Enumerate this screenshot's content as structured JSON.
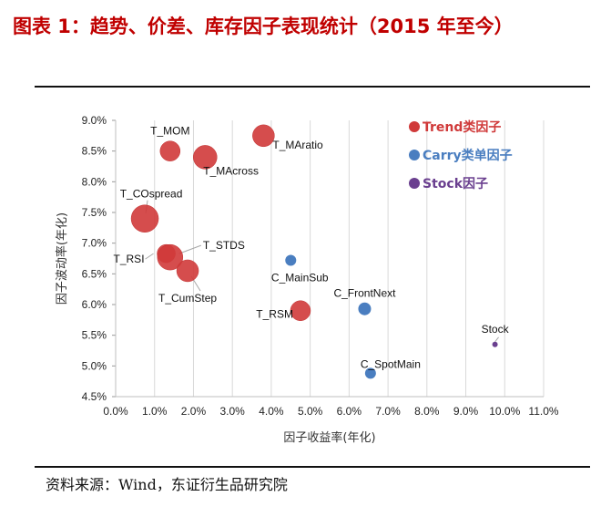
{
  "title": "图表 1：趋势、价差、库存因子表现统计（2015 年至今）",
  "source": "资料来源：Wind，东证衍生品研究院",
  "colors": {
    "trend": "#d03a3a",
    "carry": "#4a7ec0",
    "stock": "#6a3f8f",
    "grid": "#d9d9d9",
    "title": "#c00000"
  },
  "chart_data": {
    "type": "scatter",
    "title": "",
    "xlabel": "因子收益率(年化)",
    "ylabel": "因子波动率(年化)",
    "xlim": [
      0.0,
      11.0
    ],
    "ylim": [
      4.5,
      9.0
    ],
    "x_ticks": [
      "0.0%",
      "1.0%",
      "2.0%",
      "3.0%",
      "4.0%",
      "5.0%",
      "6.0%",
      "7.0%",
      "8.0%",
      "9.0%",
      "10.0%",
      "11.0%"
    ],
    "y_ticks": [
      "4.5%",
      "5.0%",
      "5.5%",
      "6.0%",
      "6.5%",
      "7.0%",
      "7.5%",
      "8.0%",
      "8.5%",
      "9.0%"
    ],
    "grid": "vertical",
    "legend_position": "top-right",
    "legend": [
      {
        "label": "Trend类因子",
        "group": "trend"
      },
      {
        "label": "Carry类单因子",
        "group": "carry"
      },
      {
        "label": "Stock因子",
        "group": "stock"
      }
    ],
    "points": [
      {
        "name": "T_MOM",
        "x": 1.4,
        "y": 8.5,
        "group": "trend",
        "size": 11
      },
      {
        "name": "T_MAratio",
        "x": 3.8,
        "y": 8.75,
        "group": "trend",
        "size": 12
      },
      {
        "name": "T_MAcross",
        "x": 2.3,
        "y": 8.4,
        "group": "trend",
        "size": 13
      },
      {
        "name": "T_COspread",
        "x": 0.75,
        "y": 7.4,
        "group": "trend",
        "size": 15
      },
      {
        "name": "T_RSI",
        "x": 1.3,
        "y": 6.83,
        "group": "trend",
        "size": 10
      },
      {
        "name": "T_STDS",
        "x": 1.4,
        "y": 6.77,
        "group": "trend",
        "size": 14
      },
      {
        "name": "T_CumStep",
        "x": 1.85,
        "y": 6.55,
        "group": "trend",
        "size": 12
      },
      {
        "name": "T_RSM",
        "x": 4.75,
        "y": 5.9,
        "group": "trend",
        "size": 11
      },
      {
        "name": "C_MainSub",
        "x": 4.5,
        "y": 6.72,
        "group": "carry",
        "size": 6
      },
      {
        "name": "C_FrontNext",
        "x": 6.4,
        "y": 5.93,
        "group": "carry",
        "size": 7
      },
      {
        "name": "C_SpotMain",
        "x": 6.55,
        "y": 4.88,
        "group": "carry",
        "size": 6
      },
      {
        "name": "Stock",
        "x": 9.75,
        "y": 5.35,
        "group": "stock",
        "size": 3
      }
    ]
  }
}
